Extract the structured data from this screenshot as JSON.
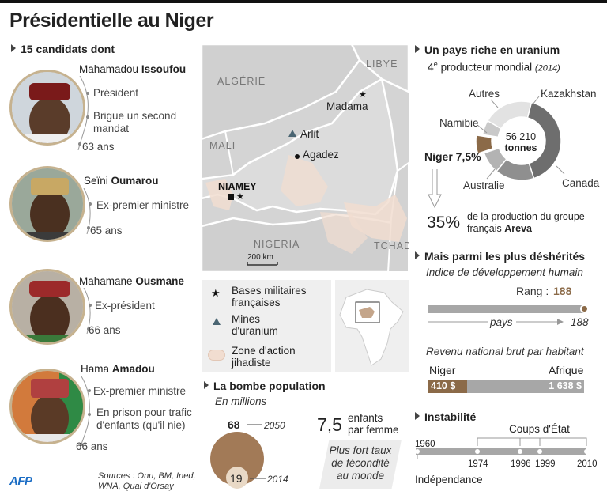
{
  "title": "Présidentielle au Niger",
  "candidates_header": "15 candidats dont",
  "candidates": [
    {
      "first": "Mahamadou",
      "last": "Issoufou",
      "lines": [
        "Président",
        "Brigue un second",
        "mandat"
      ],
      "age": "63 ans"
    },
    {
      "first": "Seïni",
      "last": "Oumarou",
      "lines": [
        "Ex-premier ministre"
      ],
      "age": "65 ans"
    },
    {
      "first": "Mahamane",
      "last": "Ousmane",
      "lines": [
        "Ex-président"
      ],
      "age": "66 ans"
    },
    {
      "first": "Hama",
      "last": "Amadou",
      "lines": [
        "Ex-premier ministre",
        "En prison pour trafic",
        "d'enfants (qu'il nie)"
      ],
      "age": "66 ans"
    }
  ],
  "map": {
    "countries": {
      "algerie": "ALGÉRIE",
      "libye": "LIBYE",
      "mali": "MALI",
      "nigeria": "NIGERIA",
      "tchad": "TCHAD"
    },
    "cities": {
      "madama": "Madama",
      "arlit": "Arlit",
      "agadez": "Agadez",
      "niamey": "NIAMEY"
    },
    "scale": "200 km"
  },
  "legend": {
    "bases": [
      "Bases militaires",
      "françaises"
    ],
    "mines": [
      "Mines",
      "d'uranium"
    ],
    "zone": [
      "Zone d'action",
      "jihadiste"
    ]
  },
  "population": {
    "header": "La bombe population",
    "subheader": "En millions",
    "v2050": "68",
    "y2050": "2050",
    "v2014": "19",
    "y2014": "2014",
    "fertility_value": "7,5",
    "fertility_unit": [
      "enfants",
      "par femme"
    ],
    "fertility_note": [
      "Plus fort taux",
      "de fécondité",
      "au monde"
    ]
  },
  "uranium": {
    "header": "Un pays riche en uranium",
    "rank_prefix": "4",
    "rank_sup": "e",
    "rank_text": "producteur mondial",
    "rank_year": "(2014)",
    "total_value": "56 210",
    "total_unit": "tonnes",
    "labels": {
      "autres": "Autres",
      "kazakhstan": "Kazakhstan",
      "namibie": "Namibie",
      "niger": "Niger 7,5%",
      "australie": "Australie",
      "canada": "Canada"
    },
    "areva_pct": "35%",
    "areva_text": [
      "de la production du groupe",
      "français"
    ],
    "areva_name": "Areva"
  },
  "chart_data": {
    "type": "pie",
    "title": "",
    "categories": [
      "Kazakhstan",
      "Canada",
      "Australie",
      "Niger",
      "Namibie",
      "Autres"
    ],
    "values": [
      41,
      16,
      9,
      7.5,
      6,
      20.5
    ],
    "total": 56210,
    "unit": "tonnes"
  },
  "poverty": {
    "header": "Mais parmi les plus déshérités",
    "idh_label": "Indice de développement humain",
    "rank_label": "Rang :",
    "rank_value": "188",
    "pays_label": "pays",
    "pays_total": "188",
    "rnb_label": "Revenu national brut par habitant",
    "niger_label": "Niger",
    "afrique_label": "Afrique",
    "niger_value": "410 $",
    "afrique_value": "1 638 $",
    "niger_amount": 410,
    "afrique_amount": 1638
  },
  "instability": {
    "header": "Instabilité",
    "coups_label": "Coups d'État",
    "years": [
      "1960",
      "1974",
      "1996",
      "1999",
      "2010"
    ],
    "independence_label": "Indépendance"
  },
  "sources": [
    "Sources : Onu, BM, Ined,",
    "WNA, Quai d'Orsay"
  ],
  "logo": "AFP",
  "colors": {
    "accent": "#8b6a48",
    "gray_bar": "#a7a7a7",
    "zone": "#f1ddd0"
  }
}
